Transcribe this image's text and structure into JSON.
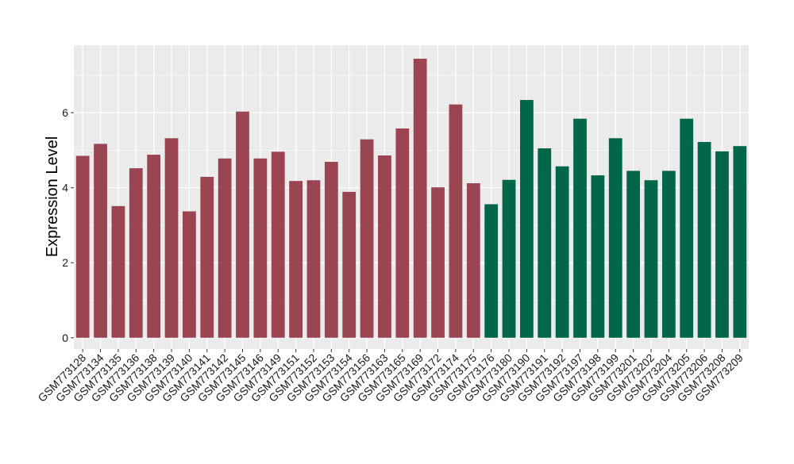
{
  "chart_data": {
    "type": "bar",
    "title": "",
    "xlabel": "",
    "ylabel": "Expression Level",
    "ylim": [
      -0.3,
      7.8
    ],
    "yticks": [
      0,
      2,
      4,
      6
    ],
    "grid": true,
    "legend": "none",
    "colors": {
      "group1": "#9b4452",
      "group2": "#02674a",
      "panel": "#ebebeb",
      "gridline": "#ffffff"
    },
    "categories": [
      "GSM773128",
      "GSM773134",
      "GSM773135",
      "GSM773136",
      "GSM773138",
      "GSM773139",
      "GSM773140",
      "GSM773141",
      "GSM773142",
      "GSM773145",
      "GSM773146",
      "GSM773149",
      "GSM773151",
      "GSM773152",
      "GSM773153",
      "GSM773154",
      "GSM773156",
      "GSM773163",
      "GSM773165",
      "GSM773169",
      "GSM773172",
      "GSM773174",
      "GSM773175",
      "GSM773176",
      "GSM773180",
      "GSM773190",
      "GSM773191",
      "GSM773192",
      "GSM773197",
      "GSM773198",
      "GSM773199",
      "GSM773201",
      "GSM773202",
      "GSM773204",
      "GSM773205",
      "GSM773206",
      "GSM773208",
      "GSM773209"
    ],
    "values": [
      4.85,
      5.17,
      3.51,
      4.52,
      4.88,
      5.32,
      3.37,
      4.29,
      4.78,
      6.03,
      4.78,
      4.96,
      4.18,
      4.2,
      4.69,
      3.89,
      5.29,
      4.86,
      5.58,
      7.44,
      4.01,
      6.22,
      4.12,
      3.56,
      4.21,
      6.34,
      5.05,
      4.57,
      5.84,
      4.33,
      5.32,
      4.45,
      4.2,
      4.45,
      5.84,
      5.22,
      4.97,
      5.11
    ],
    "groups": [
      1,
      1,
      1,
      1,
      1,
      1,
      1,
      1,
      1,
      1,
      1,
      1,
      1,
      1,
      1,
      1,
      1,
      1,
      1,
      1,
      1,
      1,
      1,
      2,
      2,
      2,
      2,
      2,
      2,
      2,
      2,
      2,
      2,
      2,
      2,
      2,
      2,
      2
    ]
  }
}
